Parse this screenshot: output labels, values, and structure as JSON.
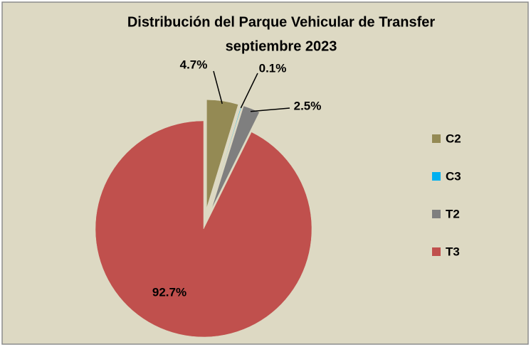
{
  "chart_data": {
    "type": "pie",
    "title": "Distribución del Parque Vehicular de Transfer",
    "subtitle": "septiembre 2023",
    "categories": [
      "C2",
      "C3",
      "T2",
      "T3"
    ],
    "values": [
      4.7,
      0.1,
      2.5,
      92.7
    ],
    "value_labels": [
      "4.7%",
      "0.1%",
      "2.5%",
      "92.7%"
    ],
    "colors": [
      "#948a54",
      "#00b0f0",
      "#7f7f7f",
      "#c0504d"
    ],
    "legend": "right"
  }
}
